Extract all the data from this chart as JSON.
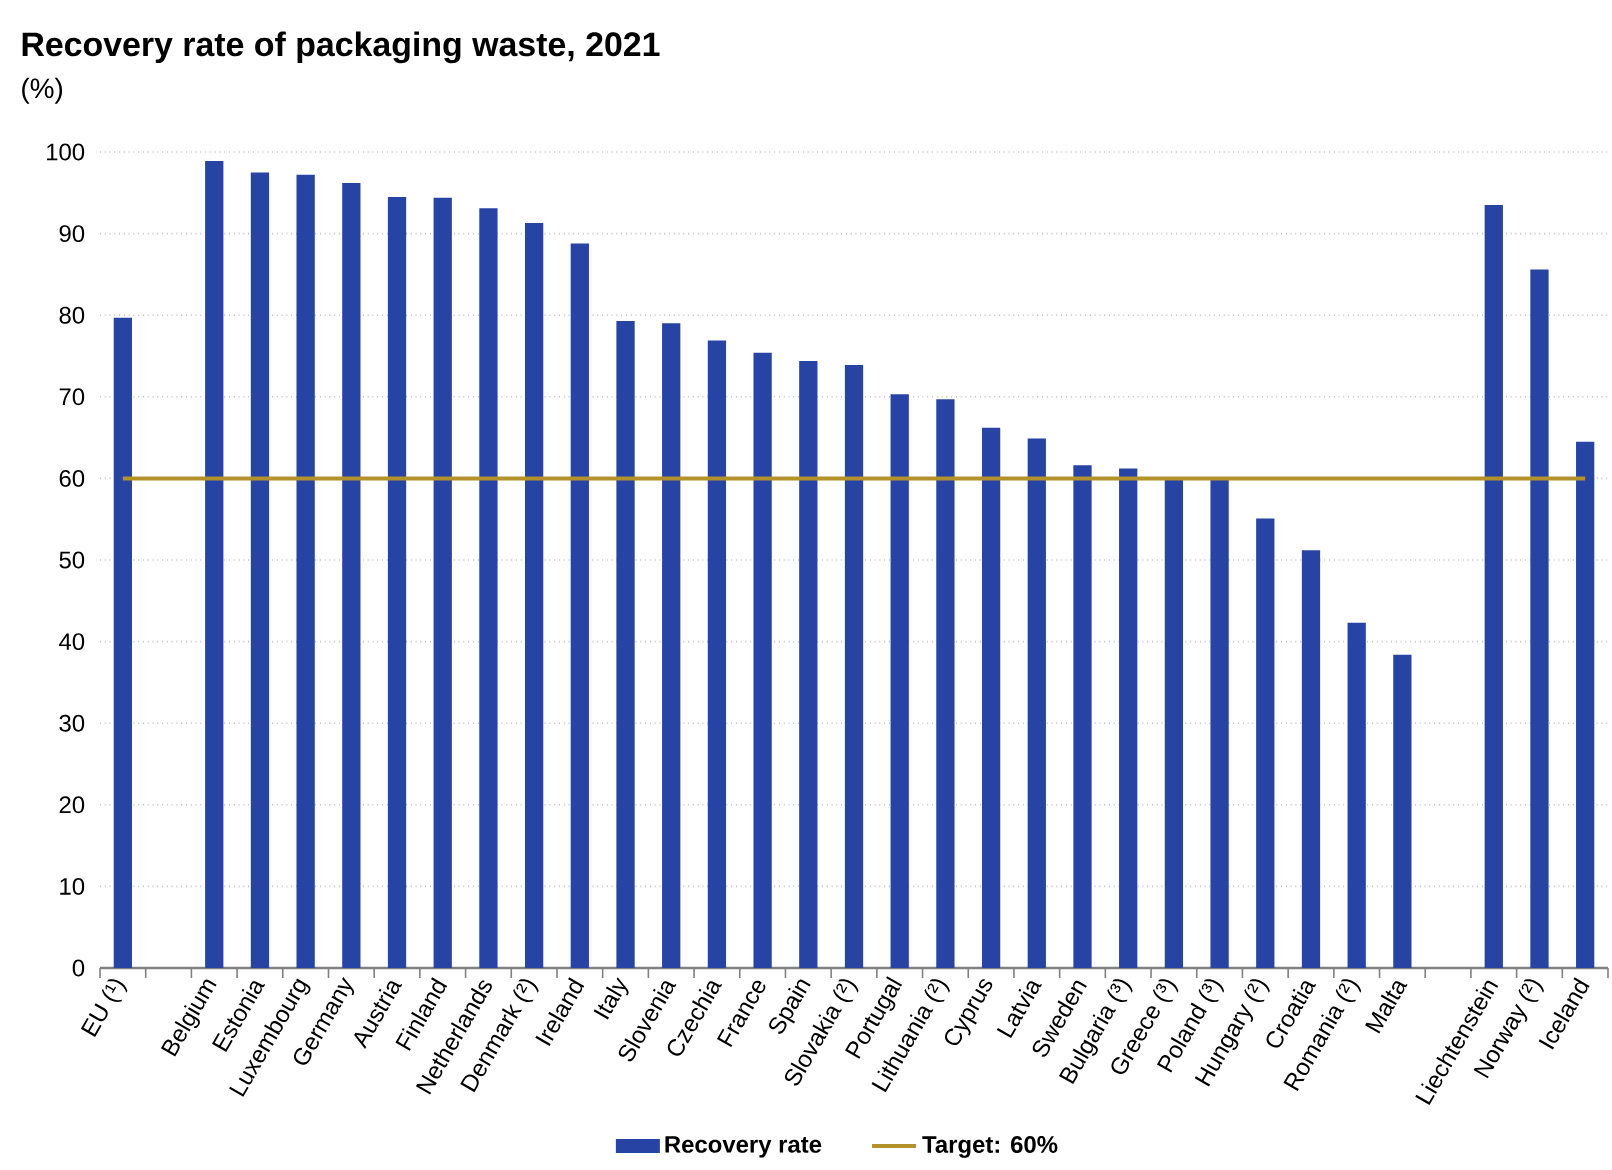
{
  "chart_data": {
    "type": "bar",
    "title": "Recovery rate of packaging waste, 2021",
    "ylabel": "(%)",
    "categories": [
      "EU (¹)",
      null,
      "Belgium",
      "Estonia",
      "Luxembourg",
      "Germany",
      "Austria",
      "Finland",
      "Netherlands",
      "Denmark (²)",
      "Ireland",
      "Italy",
      "Slovenia",
      "Czechia",
      "France",
      "Spain",
      "Slovakia (²)",
      "Portugal",
      "Lithuania (²)",
      "Cyprus",
      "Latvia",
      "Sweden",
      "Bulgaria (³)",
      "Greece (³)",
      "Poland (³)",
      "Hungary (²)",
      "Croatia",
      "Romania (²)",
      "Malta",
      null,
      "Liechtenstein",
      "Norway (²)",
      "Iceland"
    ],
    "series": [
      {
        "name": "Recovery rate",
        "color": "#2743a4",
        "values": [
          79.7,
          null,
          98.9,
          97.5,
          97.2,
          96.2,
          94.5,
          94.4,
          93.1,
          91.3,
          88.8,
          79.3,
          79.0,
          76.9,
          75.4,
          74.4,
          73.9,
          70.3,
          69.7,
          66.2,
          64.9,
          61.6,
          61.2,
          59.8,
          59.8,
          55.1,
          51.2,
          42.3,
          38.4,
          null,
          93.5,
          85.6,
          64.5
        ]
      }
    ],
    "ylim": [
      0,
      100
    ],
    "yticks": [
      0,
      10,
      20,
      30,
      40,
      50,
      60,
      70,
      80,
      90,
      100
    ],
    "grid": "y",
    "legend": "bottom",
    "ref_lines": [
      {
        "axis": "y",
        "value": 60,
        "label": "Target: 60%",
        "color": "#b3912b"
      }
    ]
  }
}
